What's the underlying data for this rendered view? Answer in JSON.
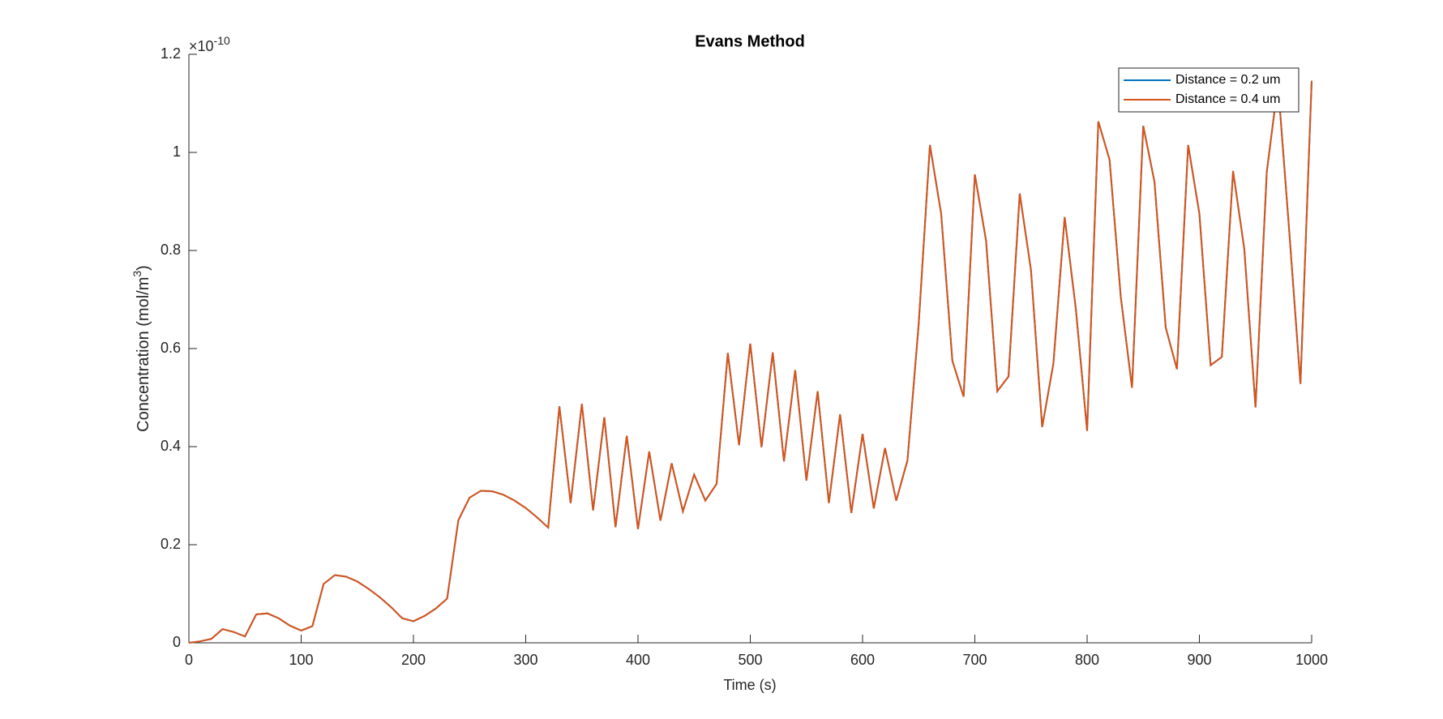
{
  "chart_data": {
    "type": "line",
    "title": "Evans Method",
    "xlabel": "Time (s)",
    "ylabel": [
      "Concentration (mol/m",
      "3",
      ")"
    ],
    "y_multiplier": {
      "base": "×10",
      "exponent": "-10"
    },
    "x": [
      0,
      10,
      20,
      30,
      40,
      50,
      60,
      70,
      80,
      90,
      100,
      110,
      120,
      130,
      140,
      150,
      160,
      170,
      180,
      190,
      200,
      210,
      220,
      230,
      240,
      250,
      260,
      270,
      280,
      290,
      300,
      310,
      320,
      330,
      340,
      350,
      360,
      370,
      380,
      390,
      400,
      410,
      420,
      430,
      440,
      450,
      460,
      470,
      480,
      490,
      500,
      510,
      520,
      530,
      540,
      550,
      560,
      570,
      580,
      590,
      600,
      610,
      620,
      630,
      640,
      650,
      660,
      670,
      680,
      690,
      700,
      710,
      720,
      730,
      740,
      750,
      760,
      770,
      780,
      790,
      800,
      810,
      820,
      830,
      840,
      850,
      860,
      870,
      880,
      890,
      900,
      910,
      920,
      930,
      940,
      950,
      960,
      970,
      980,
      990,
      1000
    ],
    "series": [
      {
        "name": "Distance = 0.2 um",
        "color": "#0072bd",
        "values": [
          0,
          0.003,
          0.008,
          0.028,
          0.022,
          0.013,
          0.058,
          0.06,
          0.05,
          0.035,
          0.025,
          0.034,
          0.12,
          0.138,
          0.135,
          0.125,
          0.11,
          0.093,
          0.073,
          0.05,
          0.044,
          0.055,
          0.07,
          0.09,
          0.25,
          0.296,
          0.31,
          0.309,
          0.302,
          0.29,
          0.275,
          0.256,
          0.235,
          0.482,
          0.285,
          0.487,
          0.27,
          0.46,
          0.236,
          0.422,
          0.232,
          0.39,
          0.249,
          0.366,
          0.268,
          0.343,
          0.29,
          0.324,
          0.591,
          0.403,
          0.61,
          0.399,
          0.592,
          0.37,
          0.556,
          0.331,
          0.513,
          0.285,
          0.466,
          0.265,
          0.426,
          0.274,
          0.397,
          0.29,
          0.372,
          0.65,
          1.015,
          0.875,
          0.575,
          0.502,
          0.955,
          0.82,
          0.513,
          0.543,
          0.916,
          0.76,
          0.44,
          0.57,
          0.868,
          0.68,
          0.432,
          1.063,
          0.985,
          0.705,
          0.52,
          1.054,
          0.94,
          0.643,
          0.558,
          1.015,
          0.875,
          0.566,
          0.583,
          0.962,
          0.803,
          0.48,
          0.96,
          1.14,
          0.84,
          0.528,
          1.146
        ]
      },
      {
        "name": "Distance = 0.4 um",
        "color": "#d95319",
        "values": [
          0,
          0.003,
          0.008,
          0.028,
          0.022,
          0.013,
          0.058,
          0.06,
          0.05,
          0.035,
          0.025,
          0.034,
          0.12,
          0.138,
          0.135,
          0.125,
          0.11,
          0.093,
          0.073,
          0.05,
          0.044,
          0.055,
          0.07,
          0.09,
          0.25,
          0.296,
          0.31,
          0.309,
          0.302,
          0.29,
          0.275,
          0.256,
          0.235,
          0.482,
          0.285,
          0.487,
          0.27,
          0.46,
          0.236,
          0.422,
          0.232,
          0.39,
          0.249,
          0.366,
          0.268,
          0.343,
          0.29,
          0.324,
          0.591,
          0.403,
          0.61,
          0.399,
          0.592,
          0.37,
          0.556,
          0.331,
          0.513,
          0.285,
          0.466,
          0.265,
          0.426,
          0.274,
          0.397,
          0.29,
          0.372,
          0.65,
          1.015,
          0.875,
          0.575,
          0.502,
          0.955,
          0.82,
          0.513,
          0.543,
          0.916,
          0.76,
          0.44,
          0.57,
          0.868,
          0.68,
          0.432,
          1.063,
          0.985,
          0.705,
          0.52,
          1.054,
          0.94,
          0.643,
          0.558,
          1.015,
          0.875,
          0.566,
          0.583,
          0.962,
          0.803,
          0.48,
          0.96,
          1.14,
          0.84,
          0.528,
          1.146
        ]
      }
    ],
    "xlim": [
      0,
      1000
    ],
    "xticks": [
      0,
      100,
      200,
      300,
      400,
      500,
      600,
      700,
      800,
      900,
      1000
    ],
    "ylim": [
      0,
      1.2
    ],
    "yticks": [
      0,
      0.2,
      0.4,
      0.6,
      0.8,
      1,
      1.2
    ],
    "grid": false,
    "legend": "northeast"
  }
}
